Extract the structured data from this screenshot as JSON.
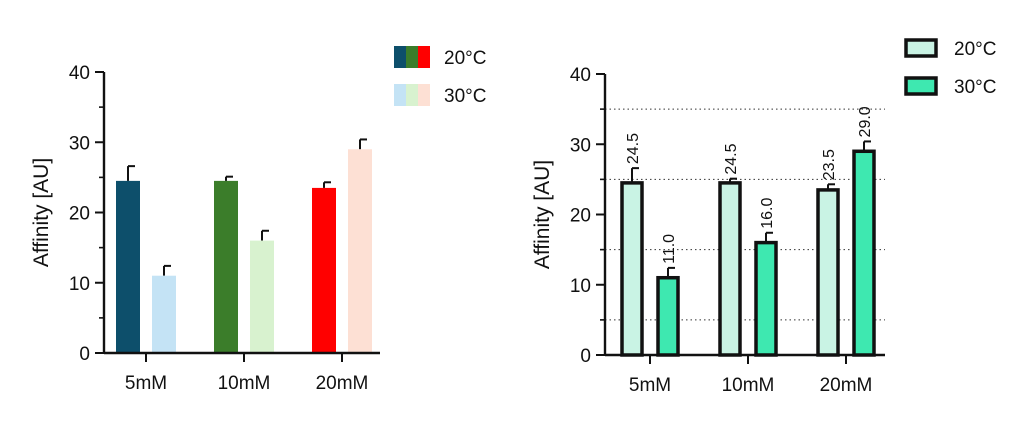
{
  "chart_data": [
    {
      "type": "bar",
      "categories": [
        "5mM",
        "10mM",
        "20mM"
      ],
      "ylabel": "Affinity [AU]",
      "ylim": [
        0,
        40
      ],
      "yticks": [
        "0",
        "10",
        "20",
        "30",
        "40"
      ],
      "grid": false,
      "legend_position": "top-right",
      "series": [
        {
          "name": "20°C",
          "values": [
            24.5,
            24.5,
            23.5
          ],
          "errors": [
            2.1,
            0.6,
            0.8
          ],
          "colors": [
            "#0d4f6b",
            "#3b7d2a",
            "#ff0000"
          ]
        },
        {
          "name": "30°C",
          "values": [
            11.0,
            16.0,
            29.0
          ],
          "errors": [
            1.4,
            1.4,
            1.4
          ],
          "colors": [
            "#c4e3f5",
            "#d8f2cf",
            "#fde0d4"
          ]
        }
      ]
    },
    {
      "type": "bar",
      "categories": [
        "5mM",
        "10mM",
        "20mM"
      ],
      "ylabel": "Affinity [AU]",
      "ylim": [
        0,
        40
      ],
      "yticks": [
        "0",
        "10",
        "20",
        "30",
        "40"
      ],
      "grid": true,
      "grid_style": "dotted horizontal at 5, 15, 25, 35",
      "gridlines": [
        5,
        15,
        25,
        35
      ],
      "legend_position": "top-right",
      "series": [
        {
          "name": "20°C",
          "values": [
            24.5,
            24.5,
            23.5
          ],
          "errors": [
            2.1,
            0.6,
            0.8
          ],
          "labels": [
            "24.5",
            "24.5",
            "23.5"
          ],
          "color": "#c9f3e4",
          "edge_color": "#111111"
        },
        {
          "name": "30°C",
          "values": [
            11.0,
            16.0,
            29.0
          ],
          "errors": [
            1.4,
            1.4,
            1.4
          ],
          "labels": [
            "11.0",
            "16.0",
            "29.0"
          ],
          "color": "#3ee8b0",
          "edge_color": "#111111"
        }
      ]
    }
  ]
}
